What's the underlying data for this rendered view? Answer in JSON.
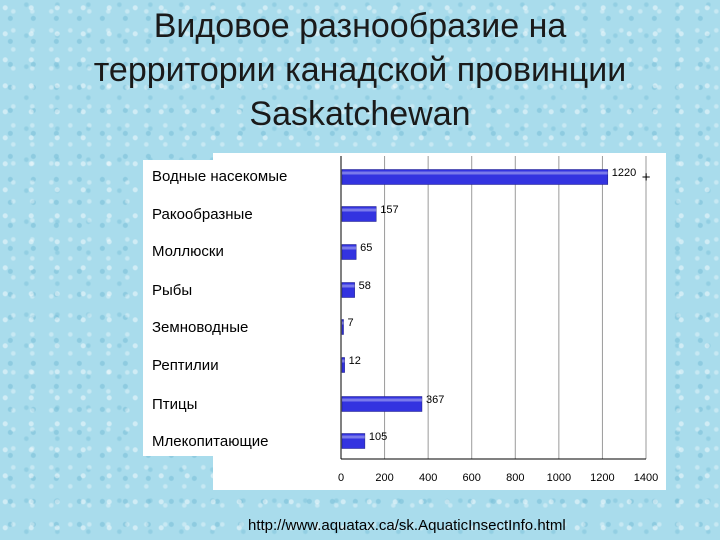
{
  "slide": {
    "title_line1": "Видовое разнообразие на",
    "title_line2": "территории канадской провинции",
    "title_line3": "Saskatchewan",
    "source": "http://www.aquatax.ca/sk.AquaticInsectInfo.html"
  },
  "chart_data": {
    "type": "bar",
    "orientation": "horizontal",
    "categories": [
      "Водные насекомые",
      "Ракообразные",
      "Моллюски",
      "Рыбы",
      "Земноводные",
      "Рептилии",
      "Птицы",
      "Млекопитающие"
    ],
    "values": [
      1220,
      157,
      65,
      58,
      7,
      12,
      367,
      105
    ],
    "value_labels": [
      "1220",
      "157",
      "65",
      "58",
      "7",
      "12",
      "367",
      "105"
    ],
    "xlim": [
      0,
      1400
    ],
    "x_ticks": [
      0,
      200,
      400,
      600,
      800,
      1000,
      1200,
      1400
    ],
    "bar_color": "#3333e0",
    "grid": true,
    "annotation": "+"
  }
}
